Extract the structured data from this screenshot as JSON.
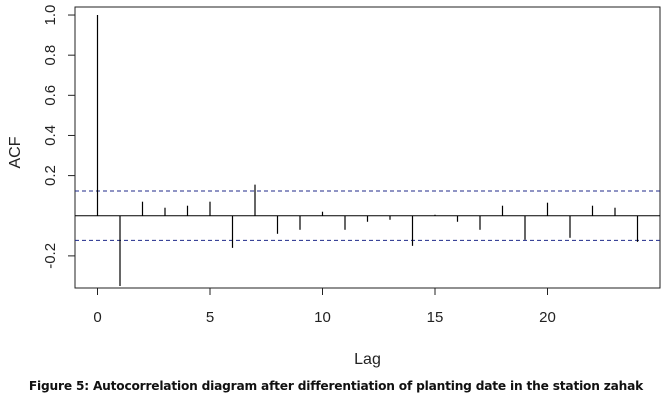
{
  "caption": "Figure 5: Autocorrelation diagram after differentiation of planting date in the station zahak",
  "chart_data": {
    "type": "bar",
    "subtype": "acf-stem",
    "xlabel": "Lag",
    "ylabel": "ACF",
    "xlim": [
      -1,
      25
    ],
    "ylim": [
      -0.36,
      1.04
    ],
    "xticks": [
      0,
      5,
      10,
      15,
      20
    ],
    "yticks": [
      -0.2,
      0.2,
      0.4,
      0.6,
      0.8,
      1.0
    ],
    "ytick_labels": [
      "-0.2",
      "0.2",
      "0.4",
      "0.6",
      "0.8",
      "1.0"
    ],
    "lags": [
      0,
      1,
      2,
      3,
      4,
      5,
      6,
      7,
      8,
      9,
      10,
      11,
      12,
      13,
      14,
      15,
      16,
      17,
      18,
      19,
      20,
      21,
      22,
      23,
      24
    ],
    "values": [
      1.0,
      -0.35,
      0.07,
      0.04,
      0.05,
      0.07,
      -0.16,
      0.155,
      -0.09,
      -0.07,
      0.02,
      -0.07,
      -0.03,
      -0.02,
      -0.15,
      0.005,
      -0.03,
      -0.07,
      0.05,
      -0.12,
      0.065,
      -0.11,
      0.05,
      0.04,
      -0.13
    ],
    "confidence_band": 0.123,
    "grid": false,
    "legend": "none",
    "colors": {
      "stem": "#000000",
      "confidence": "#1f2a8a",
      "axis": "#222222"
    }
  }
}
